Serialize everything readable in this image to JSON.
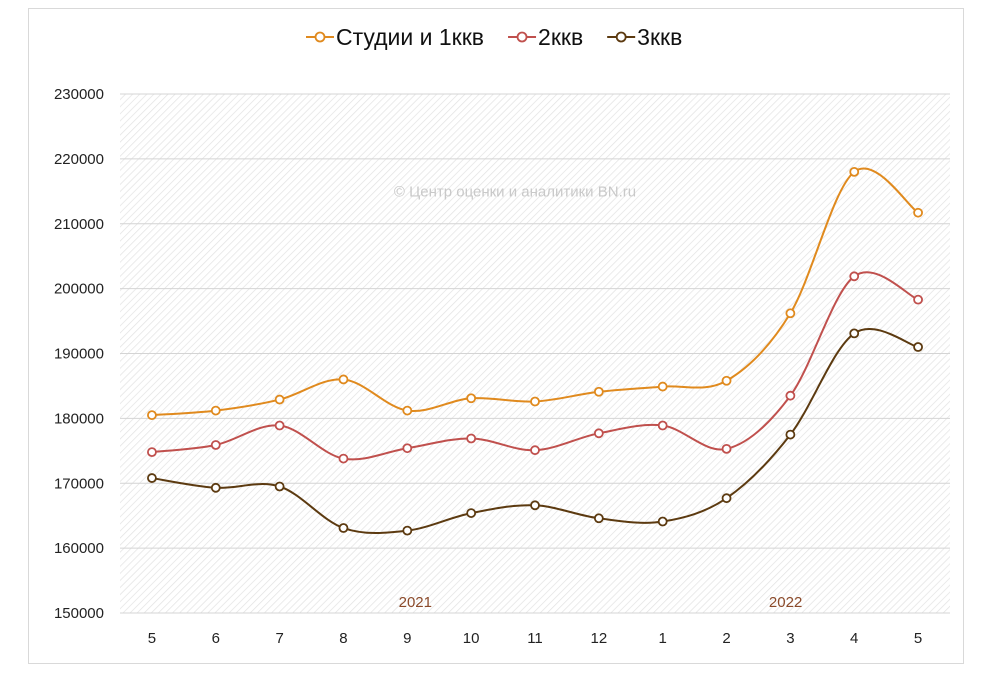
{
  "chart_data": {
    "type": "line",
    "title": "",
    "xlabel": "",
    "ylabel": "",
    "categories": [
      "5",
      "6",
      "7",
      "8",
      "9",
      "10",
      "11",
      "12",
      "1",
      "2",
      "3",
      "4",
      "5"
    ],
    "ylim": [
      150000,
      230000
    ],
    "yticks": [
      150000,
      160000,
      170000,
      180000,
      190000,
      200000,
      210000,
      220000,
      230000
    ],
    "ytick_labels": [
      "150000",
      "160000",
      "170000",
      "180000",
      "190000",
      "200000",
      "210000",
      "220000",
      "230000"
    ],
    "grid": true,
    "legend_position": "top",
    "year_labels": [
      {
        "text": "2021",
        "at_category_index": 4
      },
      {
        "text": "2022",
        "at_category_index": 9.8
      }
    ],
    "watermark": "© Центр оценки и аналитики BN.ru",
    "series": [
      {
        "name": "Студии и 1ккв",
        "color": "#e08a1e",
        "values": [
          180500,
          181200,
          182900,
          186000,
          181200,
          183100,
          182600,
          184100,
          184900,
          185800,
          196200,
          218000,
          211700
        ]
      },
      {
        "name": "2ккв",
        "color": "#c0504d",
        "values": [
          174800,
          175900,
          178900,
          173800,
          175400,
          176900,
          175100,
          177700,
          178900,
          175300,
          183500,
          201900,
          198300
        ]
      },
      {
        "name": "3ккв",
        "color": "#5c3a10",
        "values": [
          170800,
          169300,
          169500,
          163100,
          162700,
          165400,
          166600,
          164600,
          164100,
          167700,
          177500,
          193100,
          191000
        ]
      }
    ]
  }
}
